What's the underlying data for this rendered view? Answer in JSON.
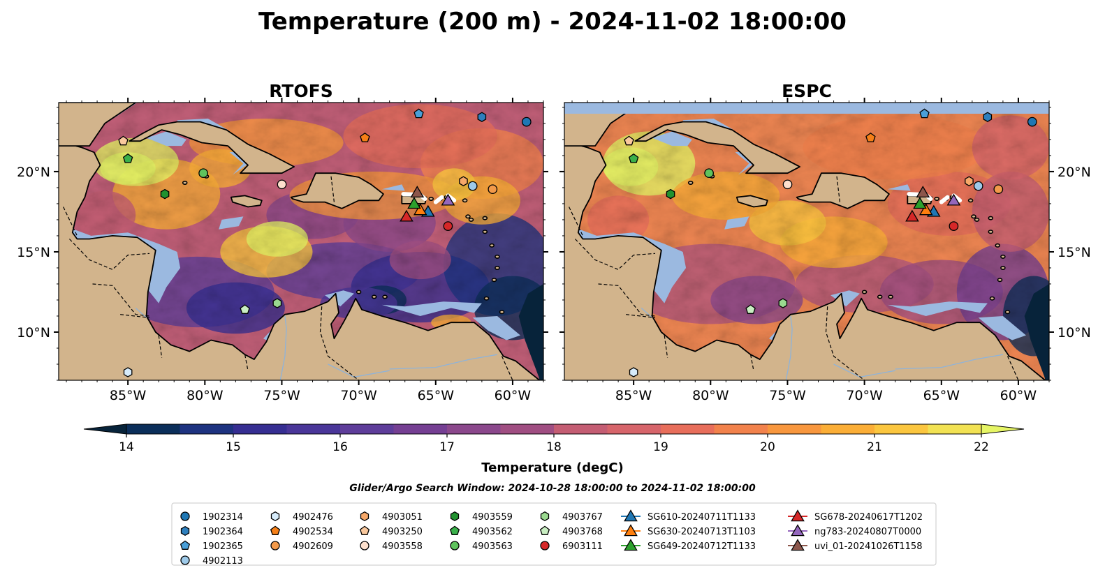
{
  "figure": {
    "title": "Temperature (200 m) - 2024-11-02 18:00:00",
    "search_window": "Glider/Argo Search Window: 2024-10-28 18:00:00 to 2024-11-02 18:00:00"
  },
  "colors": {
    "land": "#d2b48c",
    "shelf": "#9bb9e0",
    "deep": "#07233a",
    "scale": [
      "#07233a",
      "#0b2e5a",
      "#1e3380",
      "#362e92",
      "#4a3699",
      "#5e3d9a",
      "#753f93",
      "#8b488c",
      "#a04e82",
      "#b3577d",
      "#c45d73",
      "#d7656b",
      "#e86e5b",
      "#f2824c",
      "#f8973e",
      "#fbae37",
      "#fbc63f",
      "#f2e253",
      "#e6f565"
    ]
  },
  "chart_data": [
    {
      "type": "heatmap",
      "title": "RTOFS",
      "lon_range": [
        -89.5,
        -58.0
      ],
      "lat_range": [
        7.0,
        24.3
      ],
      "xticks": [
        -85,
        -80,
        -75,
        -70,
        -65,
        -60
      ],
      "xtick_labels": [
        "85°W",
        "80°W",
        "75°W",
        "70°W",
        "65°W",
        "60°W"
      ],
      "yticks": [
        10,
        15,
        20
      ],
      "ytick_labels": [
        "10°N",
        "15°N",
        "20°N"
      ],
      "ytick_side": "left"
    },
    {
      "type": "heatmap",
      "title": "ESPC",
      "lon_range": [
        -89.5,
        -58.0
      ],
      "lat_range": [
        7.0,
        24.3
      ],
      "xticks": [
        -85,
        -80,
        -75,
        -70,
        -65,
        -60
      ],
      "xtick_labels": [
        "85°W",
        "80°W",
        "75°W",
        "70°W",
        "65°W",
        "60°W"
      ],
      "yticks": [
        10,
        15,
        20
      ],
      "ytick_labels": [
        "10°N",
        "15°N",
        "20°N"
      ],
      "ytick_side": "right"
    }
  ],
  "colorbar": {
    "label": "Temperature (degC)",
    "vmin": 14,
    "vmax": 22,
    "ticks": [
      14,
      15,
      16,
      17,
      18,
      19,
      20,
      21,
      22
    ],
    "tick_labels": [
      "14",
      "15",
      "16",
      "17",
      "18",
      "19",
      "20",
      "21",
      "22"
    ]
  },
  "markers": [
    {
      "id": "1902314",
      "shape": "circle",
      "color": "#1f77b4",
      "lon": -59.1,
      "lat": 23.1
    },
    {
      "id": "1902364",
      "shape": "hexagon",
      "color": "#2e7fbd",
      "lon": -62.0,
      "lat": 23.4
    },
    {
      "id": "1902365",
      "shape": "pentagon",
      "color": "#4a9fd8",
      "lon": -66.1,
      "lat": 23.6
    },
    {
      "id": "4902113",
      "shape": "circle",
      "color": "#9ecae9",
      "lon": -62.6,
      "lat": 19.1
    },
    {
      "id": "4902476",
      "shape": "hexagon",
      "color": "#d7ecfb",
      "lon": -85.0,
      "lat": 7.5
    },
    {
      "id": "4902534",
      "shape": "pentagon",
      "color": "#f57f17",
      "lon": -69.6,
      "lat": 22.1
    },
    {
      "id": "4902609",
      "shape": "circle",
      "color": "#f39a4a",
      "lon": -61.3,
      "lat": 18.9
    },
    {
      "id": "4903051",
      "shape": "hexagon",
      "color": "#f7a869",
      "lon": -63.2,
      "lat": 19.4
    },
    {
      "id": "4903250",
      "shape": "pentagon",
      "color": "#f9c89d",
      "lon": -85.3,
      "lat": 21.9
    },
    {
      "id": "4903558",
      "shape": "circle",
      "color": "#fde0cd",
      "lon": -75.0,
      "lat": 19.2
    },
    {
      "id": "4903559",
      "shape": "hexagon",
      "color": "#21922f",
      "lon": -82.6,
      "lat": 18.6
    },
    {
      "id": "4903562",
      "shape": "pentagon",
      "color": "#3ab04a",
      "lon": -85.0,
      "lat": 20.8
    },
    {
      "id": "4903563",
      "shape": "circle",
      "color": "#5fc35d",
      "lon": -80.1,
      "lat": 19.9
    },
    {
      "id": "4903767",
      "shape": "hexagon",
      "color": "#9ad98f",
      "lon": -75.3,
      "lat": 11.8
    },
    {
      "id": "4903768",
      "shape": "pentagon",
      "color": "#c9eec2",
      "lon": -77.4,
      "lat": 11.4
    },
    {
      "id": "6903111",
      "shape": "circle",
      "color": "#d62728",
      "lon": -64.2,
      "lat": 16.6
    }
  ],
  "gliders": [
    {
      "id": "SG610-20240711T1133",
      "color": "#1f77b4",
      "lon": -65.5,
      "lat": 17.5
    },
    {
      "id": "SG630-20240713T1103",
      "color": "#ff7f0e",
      "lon": -66.0,
      "lat": 17.6
    },
    {
      "id": "SG649-20240712T1133",
      "color": "#2ca02c",
      "lon": -66.4,
      "lat": 18.0
    },
    {
      "id": "SG678-20240617T1202",
      "color": "#d62728",
      "lon": -66.9,
      "lat": 17.2
    },
    {
      "id": "ng783-20240807T0000",
      "color": "#9467bd",
      "lon": -64.2,
      "lat": 18.2
    },
    {
      "id": "uvi_01-20241026T1158",
      "color": "#8c564b",
      "lon": -66.2,
      "lat": 18.7
    }
  ],
  "legend": {
    "columns": [
      [
        "1902314",
        "1902364",
        "1902365",
        "4902113"
      ],
      [
        "4902476",
        "4902534",
        "4902609"
      ],
      [
        "4903051",
        "4903250",
        "4903558"
      ],
      [
        "4903559",
        "4903562",
        "4903563"
      ],
      [
        "4903767",
        "4903768",
        "6903111"
      ],
      [
        "SG610-20240711T1133",
        "SG630-20240713T1103",
        "SG649-20240712T1133"
      ],
      [
        "SG678-20240617T1202",
        "ng783-20240807T0000",
        "uvi_01-20241026T1158"
      ]
    ]
  }
}
